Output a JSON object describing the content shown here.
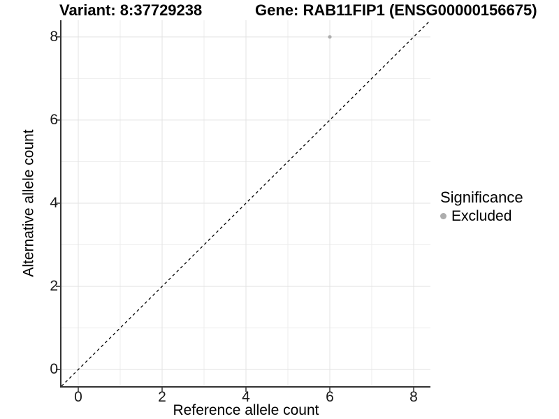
{
  "chart_data": {
    "type": "scatter",
    "title_variant": "Variant: 8:37729238",
    "title_gene": "Gene: RAB11FIP1 (ENSG00000156675)",
    "xlabel": "Reference allele count",
    "ylabel": "Alternative allele count",
    "xlim": [
      -0.4,
      8.4
    ],
    "ylim": [
      -0.4,
      8.4
    ],
    "x_ticks": [
      0,
      2,
      4,
      6,
      8
    ],
    "y_ticks": [
      0,
      2,
      4,
      6,
      8
    ],
    "x_minor_ticks": [
      1,
      3,
      5,
      7
    ],
    "y_minor_ticks": [
      1,
      3,
      5,
      7
    ],
    "grid": true,
    "series": [
      {
        "name": "Excluded",
        "color": "#adadad",
        "point_radius": 2.6,
        "points": [
          {
            "x": 6,
            "y": 8
          }
        ]
      }
    ],
    "reference_line": {
      "type": "identity",
      "slope": 1,
      "intercept": 0,
      "style": "dashed",
      "color": "#000000"
    },
    "legend": {
      "title": "Significance",
      "position": "right",
      "entries": [
        {
          "label": "Excluded",
          "color": "#adadad"
        }
      ]
    },
    "colors": {
      "background": "#ffffff",
      "grid_major": "#e3e3e3",
      "grid_minor": "#eeeeee",
      "axis": "#333333",
      "tick_text": "#1a1a1a"
    }
  }
}
